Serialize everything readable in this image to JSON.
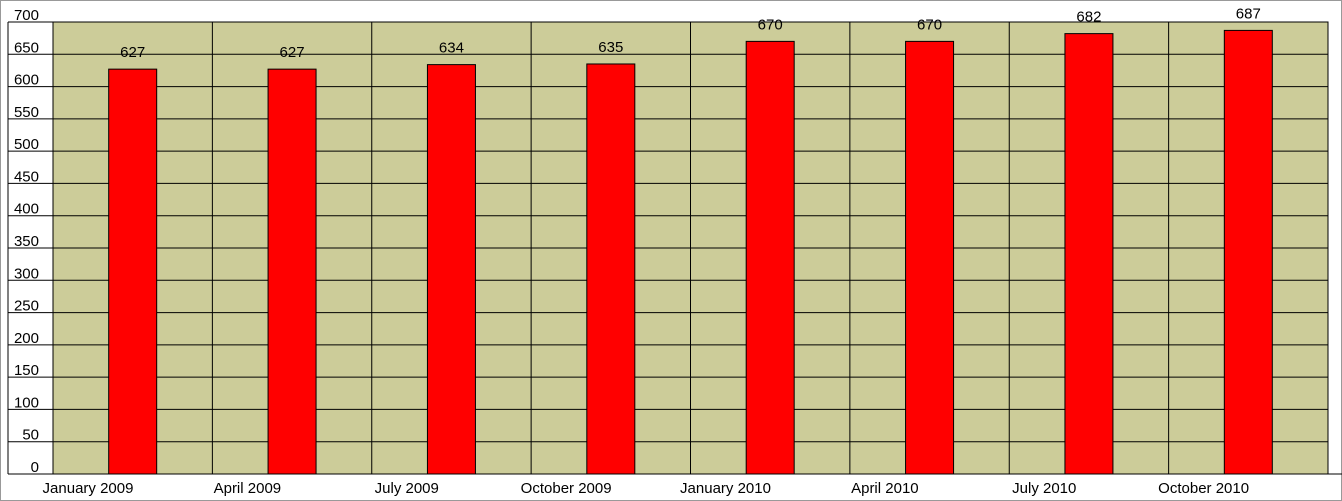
{
  "chart_data": {
    "type": "bar",
    "categories": [
      "January 2009",
      "April 2009",
      "July 2009",
      "October 2009",
      "January 2010",
      "April 2010",
      "July 2010",
      "October 2010"
    ],
    "values": [
      627,
      627,
      634,
      635,
      670,
      670,
      682,
      687
    ],
    "color": "#ff0000",
    "background": "#cccc99",
    "ylim": [
      0,
      700
    ],
    "yticks": [
      0,
      50,
      100,
      150,
      200,
      250,
      300,
      350,
      400,
      450,
      500,
      550,
      600,
      650,
      700
    ],
    "grid": true
  }
}
